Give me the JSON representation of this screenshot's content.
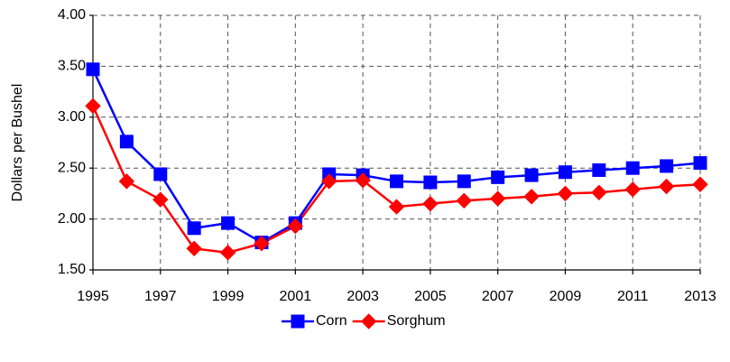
{
  "chart_data": {
    "type": "line",
    "y_label": "Dollars per Bushel",
    "x": [
      1995,
      1996,
      1997,
      1998,
      1999,
      2000,
      2001,
      2002,
      2003,
      2004,
      2005,
      2006,
      2007,
      2008,
      2009,
      2010,
      2011,
      2012,
      2013
    ],
    "series": [
      {
        "name": "Corn",
        "color": "#0000ff",
        "marker": "square",
        "values": [
          3.47,
          2.76,
          2.44,
          1.91,
          1.96,
          1.77,
          1.96,
          2.44,
          2.43,
          2.37,
          2.36,
          2.37,
          2.41,
          2.43,
          2.46,
          2.48,
          2.5,
          2.52,
          2.55
        ]
      },
      {
        "name": "Sorghum",
        "color": "#ff0000",
        "marker": "diamond",
        "values": [
          3.11,
          2.37,
          2.19,
          1.71,
          1.67,
          1.76,
          1.93,
          2.37,
          2.38,
          2.12,
          2.15,
          2.18,
          2.2,
          2.22,
          2.25,
          2.26,
          2.29,
          2.32,
          2.34
        ]
      }
    ],
    "xlim": [
      1995,
      2013
    ],
    "xticks": [
      1995,
      1997,
      1999,
      2001,
      2003,
      2005,
      2007,
      2009,
      2011,
      2013
    ],
    "ylim": [
      1.5,
      4.0
    ],
    "yticks": [
      {
        "value": 1.5,
        "label": "1.50"
      },
      {
        "value": 2.0,
        "label": "2.00"
      },
      {
        "value": 2.5,
        "label": "2.50"
      },
      {
        "value": 3.0,
        "label": "3.00"
      },
      {
        "value": 3.5,
        "label": "3.50"
      },
      {
        "value": 4.0,
        "label": "4.00"
      }
    ],
    "grid": true,
    "legend": "bottom"
  }
}
